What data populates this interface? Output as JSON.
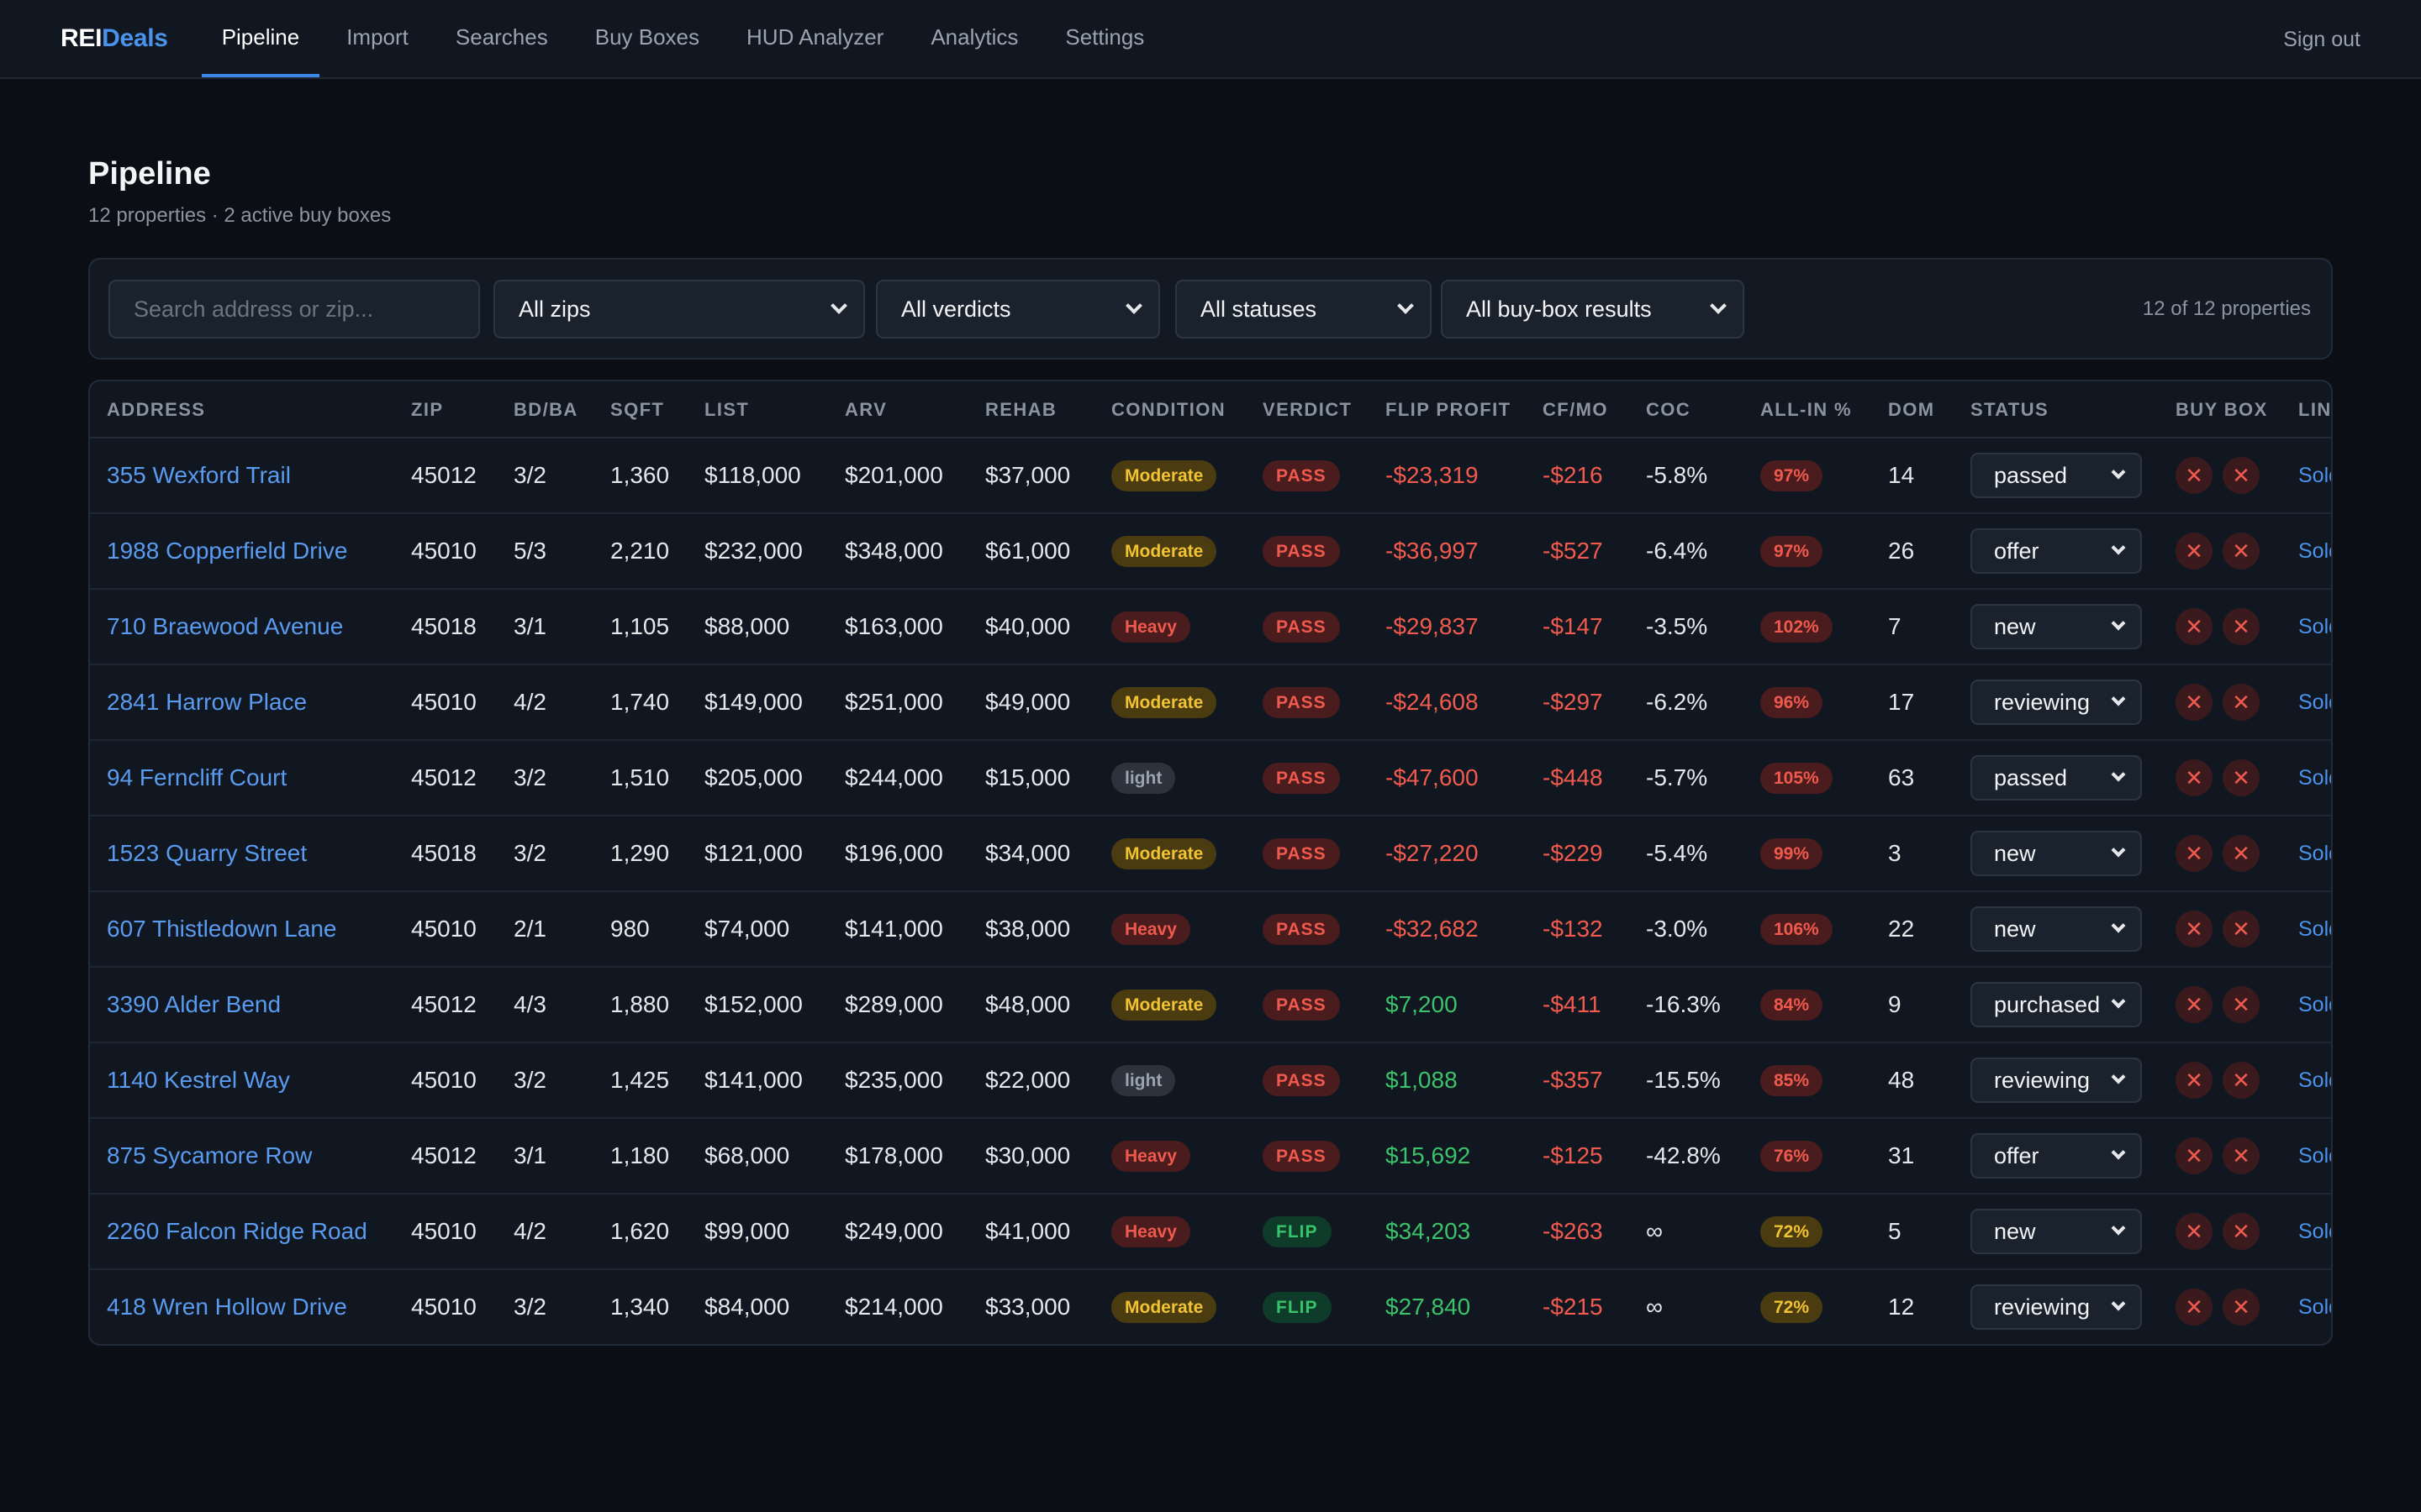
{
  "brand": {
    "part1": "REI",
    "part2": "Deals"
  },
  "nav": {
    "items": [
      "Pipeline",
      "Import",
      "Searches",
      "Buy Boxes",
      "HUD Analyzer",
      "Analytics",
      "Settings"
    ],
    "active": "Pipeline",
    "signout": "Sign out"
  },
  "page": {
    "title": "Pipeline",
    "subtitle": "12 properties · 2 active buy boxes"
  },
  "filters": {
    "search_placeholder": "Search address or zip...",
    "zip": "All zips",
    "verdict": "All verdicts",
    "status": "All statuses",
    "buybox": "All buy-box results",
    "count": "12 of 12 properties"
  },
  "table": {
    "headers": [
      "ADDRESS",
      "ZIP",
      "BD/BA",
      "SQFT",
      "LIST",
      "ARV",
      "REHAB",
      "CONDITION",
      "VERDICT",
      "FLIP PROFIT",
      "CF/MO",
      "COC",
      "ALL-IN %",
      "DOM",
      "STATUS",
      "BUY BOX",
      "LIN"
    ],
    "rows": [
      {
        "address": "355 Wexford Trail",
        "zip": "45012",
        "bdba": "3/2",
        "sqft": "1,360",
        "list": "$118,000",
        "arv": "$201,000",
        "rehab": "$37,000",
        "condition": "Moderate",
        "verdict": "PASS",
        "flip": "-$23,319",
        "cf": "-$216",
        "coc": "-5.8%",
        "allin": "97%",
        "dom": "14",
        "status": "passed",
        "link": "Sold"
      },
      {
        "address": "1988 Copperfield Drive",
        "zip": "45010",
        "bdba": "5/3",
        "sqft": "2,210",
        "list": "$232,000",
        "arv": "$348,000",
        "rehab": "$61,000",
        "condition": "Moderate",
        "verdict": "PASS",
        "flip": "-$36,997",
        "cf": "-$527",
        "coc": "-6.4%",
        "allin": "97%",
        "dom": "26",
        "status": "offer",
        "link": "Sold"
      },
      {
        "address": "710 Braewood Avenue",
        "zip": "45018",
        "bdba": "3/1",
        "sqft": "1,105",
        "list": "$88,000",
        "arv": "$163,000",
        "rehab": "$40,000",
        "condition": "Heavy",
        "verdict": "PASS",
        "flip": "-$29,837",
        "cf": "-$147",
        "coc": "-3.5%",
        "allin": "102%",
        "dom": "7",
        "status": "new",
        "link": "Sold"
      },
      {
        "address": "2841 Harrow Place",
        "zip": "45010",
        "bdba": "4/2",
        "sqft": "1,740",
        "list": "$149,000",
        "arv": "$251,000",
        "rehab": "$49,000",
        "condition": "Moderate",
        "verdict": "PASS",
        "flip": "-$24,608",
        "cf": "-$297",
        "coc": "-6.2%",
        "allin": "96%",
        "dom": "17",
        "status": "reviewing",
        "link": "Sold"
      },
      {
        "address": "94 Ferncliff Court",
        "zip": "45012",
        "bdba": "3/2",
        "sqft": "1,510",
        "list": "$205,000",
        "arv": "$244,000",
        "rehab": "$15,000",
        "condition": "light",
        "verdict": "PASS",
        "flip": "-$47,600",
        "cf": "-$448",
        "coc": "-5.7%",
        "allin": "105%",
        "dom": "63",
        "status": "passed",
        "link": "Sold"
      },
      {
        "address": "1523 Quarry Street",
        "zip": "45018",
        "bdba": "3/2",
        "sqft": "1,290",
        "list": "$121,000",
        "arv": "$196,000",
        "rehab": "$34,000",
        "condition": "Moderate",
        "verdict": "PASS",
        "flip": "-$27,220",
        "cf": "-$229",
        "coc": "-5.4%",
        "allin": "99%",
        "dom": "3",
        "status": "new",
        "link": "Sold"
      },
      {
        "address": "607 Thistledown Lane",
        "zip": "45010",
        "bdba": "2/1",
        "sqft": "980",
        "list": "$74,000",
        "arv": "$141,000",
        "rehab": "$38,000",
        "condition": "Heavy",
        "verdict": "PASS",
        "flip": "-$32,682",
        "cf": "-$132",
        "coc": "-3.0%",
        "allin": "106%",
        "dom": "22",
        "status": "new",
        "link": "Sold"
      },
      {
        "address": "3390 Alder Bend",
        "zip": "45012",
        "bdba": "4/3",
        "sqft": "1,880",
        "list": "$152,000",
        "arv": "$289,000",
        "rehab": "$48,000",
        "condition": "Moderate",
        "verdict": "PASS",
        "flip": "$7,200",
        "cf": "-$411",
        "coc": "-16.3%",
        "allin": "84%",
        "dom": "9",
        "status": "purchased",
        "link": "Sold"
      },
      {
        "address": "1140 Kestrel Way",
        "zip": "45010",
        "bdba": "3/2",
        "sqft": "1,425",
        "list": "$141,000",
        "arv": "$235,000",
        "rehab": "$22,000",
        "condition": "light",
        "verdict": "PASS",
        "flip": "$1,088",
        "cf": "-$357",
        "coc": "-15.5%",
        "allin": "85%",
        "dom": "48",
        "status": "reviewing",
        "link": "Sold"
      },
      {
        "address": "875 Sycamore Row",
        "zip": "45012",
        "bdba": "3/1",
        "sqft": "1,180",
        "list": "$68,000",
        "arv": "$178,000",
        "rehab": "$30,000",
        "condition": "Heavy",
        "verdict": "PASS",
        "flip": "$15,692",
        "cf": "-$125",
        "coc": "-42.8%",
        "allin": "76%",
        "dom": "31",
        "status": "offer",
        "link": "Sold"
      },
      {
        "address": "2260 Falcon Ridge Road",
        "zip": "45010",
        "bdba": "4/2",
        "sqft": "1,620",
        "list": "$99,000",
        "arv": "$249,000",
        "rehab": "$41,000",
        "condition": "Heavy",
        "verdict": "FLIP",
        "flip": "$34,203",
        "cf": "-$263",
        "coc": "∞",
        "allin": "72%",
        "dom": "5",
        "status": "new",
        "link": "Sold"
      },
      {
        "address": "418 Wren Hollow Drive",
        "zip": "45010",
        "bdba": "3/2",
        "sqft": "1,340",
        "list": "$84,000",
        "arv": "$214,000",
        "rehab": "$33,000",
        "condition": "Moderate",
        "verdict": "FLIP",
        "flip": "$27,840",
        "cf": "-$215",
        "coc": "∞",
        "allin": "72%",
        "dom": "12",
        "status": "reviewing",
        "link": "Sold"
      }
    ]
  },
  "colors": {
    "accent": "#3d86e6",
    "negative": "#f25a4e",
    "positive": "#3cc26a",
    "warning": "#f1c232"
  }
}
